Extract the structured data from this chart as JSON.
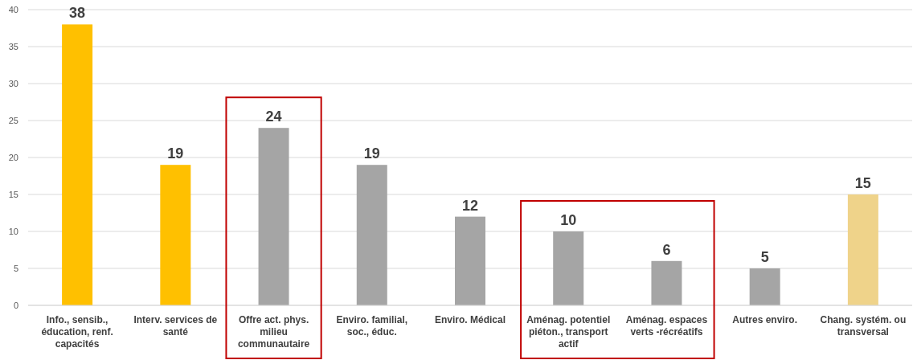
{
  "chart_data": {
    "type": "bar",
    "categories": [
      "Info., sensib., éducation, renf. capacités",
      "Interv. services de santé",
      "Offre act. phys. milieu communautaire",
      "Enviro. familial, soc., éduc.",
      "Enviro. Médical",
      "Aménag. potentiel piéton., transport actif",
      "Aménag. espaces verts -récréatifs",
      "Autres enviro.",
      "Chang. systém. ou transversal"
    ],
    "values": [
      38,
      19,
      24,
      19,
      12,
      10,
      6,
      5,
      15
    ],
    "colors": [
      "#ffc000",
      "#ffc000",
      "#a5a5a5",
      "#a5a5a5",
      "#a5a5a5",
      "#a5a5a5",
      "#a5a5a5",
      "#a5a5a5",
      "#efd38a"
    ],
    "ylim": [
      0,
      40
    ],
    "yticks": [
      0,
      5,
      10,
      15,
      20,
      25,
      30,
      35,
      40
    ],
    "grid": "y",
    "data_labels": true
  }
}
